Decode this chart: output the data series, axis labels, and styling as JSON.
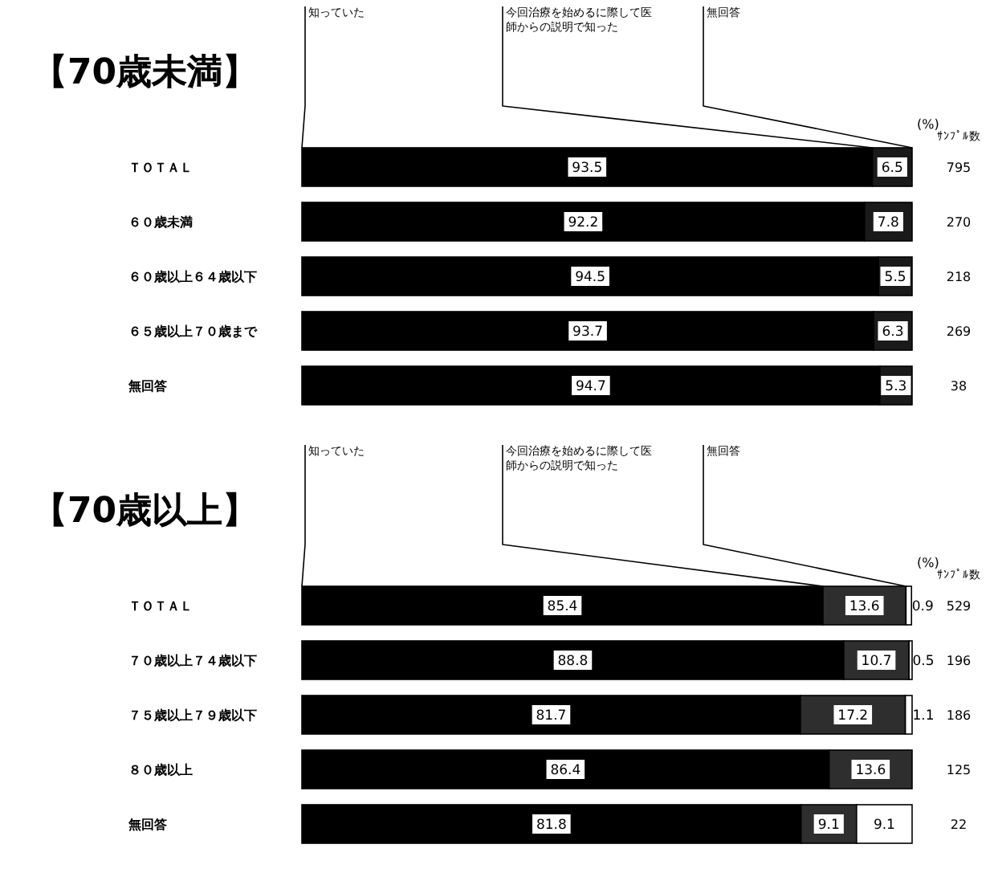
{
  "chart_data": [
    {
      "type": "bar",
      "orientation": "horizontal",
      "stacked": true,
      "title": "【70歳未満】",
      "xlabel": "(%)",
      "xlim": [
        0,
        100
      ],
      "tick_labels": "y",
      "legend": "top",
      "data_labels": true,
      "categories": [
        "ＴＯＴＡＬ",
        "６０歳未満",
        "６０歳以上６４歳以下",
        "６５歳以上７０歳まで",
        "無回答"
      ],
      "series": [
        {
          "name": "知っていた",
          "color": "#000000",
          "values": [
            93.5,
            92.2,
            94.5,
            93.7,
            94.7
          ]
        },
        {
          "name": "今回治療を始めるに際して医師からの説明で知った",
          "color": "#1a1a1a",
          "values": [
            6.5,
            7.8,
            5.5,
            6.3,
            5.3
          ]
        },
        {
          "name": "無回答",
          "values": [
            null,
            null,
            null,
            null,
            null
          ]
        }
      ],
      "annotations": [
        "ｻﾝﾌﾟﾙ数",
        "795",
        "270",
        "218",
        "269",
        "38"
      ]
    },
    {
      "type": "bar",
      "orientation": "horizontal",
      "stacked": true,
      "title": "【70歳以上】",
      "xlabel": "(%)",
      "xlim": [
        0,
        100
      ],
      "tick_labels": "y",
      "legend": "top",
      "data_labels": true,
      "categories": [
        "ＴＯＴＡＬ",
        "７０歳以上７４歳以下",
        "７５歳以上７９歳以下",
        "８０歳以上",
        "無回答"
      ],
      "series": [
        {
          "name": "知っていた",
          "color": "#000000",
          "values": [
            85.4,
            88.8,
            81.7,
            86.4,
            81.8
          ]
        },
        {
          "name": "今回治療を始めるに際して医師からの説明で知った",
          "color": "#2e2e2e",
          "values": [
            13.6,
            10.7,
            17.2,
            13.6,
            9.1
          ]
        },
        {
          "name": "無回答",
          "color": "#ffffff",
          "values": [
            0.9,
            0.5,
            1.1,
            null,
            9.1
          ]
        }
      ],
      "annotations": [
        "ｻﾝﾌﾟﾙ数",
        "529",
        "196",
        "186",
        "125",
        "22"
      ]
    }
  ]
}
